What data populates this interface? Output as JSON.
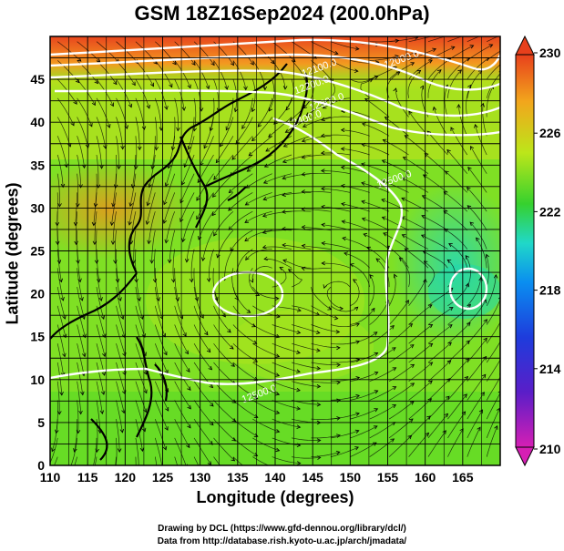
{
  "title": "GSM 18Z16Sep2024 (200.0hPa)",
  "xlabel": "Longitude (degrees)",
  "ylabel": "Latitude  (degrees)",
  "credits": [
    "Drawing by DCL (https://www.gfd-dennou.org/library/dcl/)",
    "Data from http://database.rish.kyoto-u.ac.jp/arch/jmadata/"
  ],
  "chart_data": {
    "type": "heatmap",
    "title": "GSM 18Z16Sep2024 (200.0hPa)",
    "xlabel": "Longitude (degrees)",
    "ylabel": "Latitude  (degrees)",
    "xlim": [
      110,
      170
    ],
    "ylim": [
      0,
      50
    ],
    "x_ticks": [
      110,
      115,
      120,
      125,
      130,
      135,
      140,
      145,
      150,
      155,
      160,
      165
    ],
    "y_ticks": [
      0,
      5,
      10,
      15,
      20,
      25,
      30,
      35,
      40,
      45
    ],
    "grid": true,
    "colorbar": {
      "ticks": [
        210,
        214,
        218,
        222,
        226,
        230
      ],
      "range": [
        210,
        230
      ],
      "colors": [
        "#d61fb4",
        "#3a1dc8",
        "#0a8ef0",
        "#20d8c8",
        "#36d12e",
        "#bce61a",
        "#f2a61c",
        "#e8401c"
      ],
      "placement": "right"
    },
    "contour_labels": [
      {
        "text": "12000.0",
        "lon": 157,
        "lat": 47
      },
      {
        "text": "12100.0",
        "lon": 146,
        "lat": 46
      },
      {
        "text": "12200.0",
        "lon": 145,
        "lat": 44
      },
      {
        "text": "12300.0",
        "lon": 147,
        "lat": 42
      },
      {
        "text": "12400.0",
        "lon": 144,
        "lat": 40
      },
      {
        "text": "12500.0",
        "lon": 156,
        "lat": 33
      },
      {
        "text": "12500.0",
        "lon": 138,
        "lat": 8
      }
    ]
  }
}
